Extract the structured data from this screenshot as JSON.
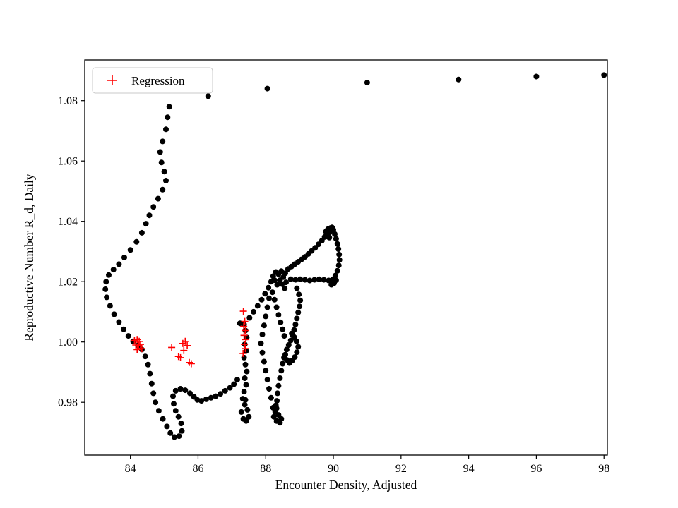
{
  "chart_data": {
    "type": "scatter",
    "title": "",
    "xlabel": "Encounter Density, Adjusted",
    "ylabel": "Reproductive Number R_d, Daily",
    "xlim": [
      82.65,
      98.1
    ],
    "ylim": [
      0.9625,
      1.0935
    ],
    "grid": false,
    "xticks": [
      84,
      86,
      88,
      90,
      92,
      94,
      96,
      98
    ],
    "xtick_labels": [
      "84",
      "86",
      "88",
      "90",
      "92",
      "94",
      "96",
      "98"
    ],
    "yticks": [
      0.98,
      1.0,
      1.02,
      1.04,
      1.06,
      1.08
    ],
    "ytick_labels": [
      "0.98",
      "1.00",
      "1.02",
      "1.04",
      "1.06",
      "1.08"
    ],
    "legend": {
      "position": "upper-left",
      "label": "Regression",
      "marker": "plus",
      "marker_color": "#ff0000"
    },
    "series": [
      {
        "name": "daily-trajectory",
        "marker": "circle",
        "color": "#000000",
        "points": [
          [
            85.15,
            1.078
          ],
          [
            86.3,
            1.0815
          ],
          [
            88.05,
            1.084
          ],
          [
            91.0,
            1.086
          ],
          [
            93.7,
            1.087
          ],
          [
            96.0,
            1.088
          ],
          [
            98.0,
            1.0885
          ],
          [
            85.1,
            1.0745
          ],
          [
            85.05,
            1.0705
          ],
          [
            84.95,
            1.0665
          ],
          [
            84.88,
            1.063
          ],
          [
            84.92,
            1.0595
          ],
          [
            85.0,
            1.0565
          ],
          [
            85.05,
            1.0535
          ],
          [
            84.95,
            1.0505
          ],
          [
            84.82,
            1.0475
          ],
          [
            84.68,
            1.0448
          ],
          [
            84.56,
            1.042
          ],
          [
            84.46,
            1.0392
          ],
          [
            84.34,
            1.0362
          ],
          [
            84.18,
            1.0332
          ],
          [
            84.0,
            1.0305
          ],
          [
            83.82,
            1.028
          ],
          [
            83.66,
            1.0258
          ],
          [
            83.5,
            1.024
          ],
          [
            83.36,
            1.0222
          ],
          [
            83.28,
            1.02
          ],
          [
            83.26,
            1.0175
          ],
          [
            83.3,
            1.0148
          ],
          [
            83.4,
            1.012
          ],
          [
            83.52,
            1.0092
          ],
          [
            83.66,
            1.0066
          ],
          [
            83.8,
            1.0042
          ],
          [
            83.94,
            1.002
          ],
          [
            84.08,
            1.0002
          ],
          [
            84.22,
            0.9988
          ],
          [
            84.34,
            0.9975
          ],
          [
            84.44,
            0.9952
          ],
          [
            84.52,
            0.9925
          ],
          [
            84.58,
            0.9895
          ],
          [
            84.63,
            0.9862
          ],
          [
            84.68,
            0.983
          ],
          [
            84.74,
            0.98
          ],
          [
            84.84,
            0.9772
          ],
          [
            84.96,
            0.9745
          ],
          [
            85.08,
            0.972
          ],
          [
            85.18,
            0.9698
          ],
          [
            85.3,
            0.9685
          ],
          [
            85.44,
            0.9688
          ],
          [
            85.52,
            0.9705
          ],
          [
            85.5,
            0.973
          ],
          [
            85.42,
            0.9752
          ],
          [
            85.34,
            0.9772
          ],
          [
            85.28,
            0.9795
          ],
          [
            85.26,
            0.982
          ],
          [
            85.34,
            0.9838
          ],
          [
            85.48,
            0.9845
          ],
          [
            85.62,
            0.984
          ],
          [
            85.76,
            0.983
          ],
          [
            85.88,
            0.9818
          ],
          [
            85.98,
            0.9808
          ],
          [
            86.1,
            0.9805
          ],
          [
            86.24,
            0.981
          ],
          [
            86.38,
            0.9815
          ],
          [
            86.52,
            0.982
          ],
          [
            86.66,
            0.9828
          ],
          [
            86.8,
            0.9838
          ],
          [
            86.94,
            0.9848
          ],
          [
            87.06,
            0.986
          ],
          [
            87.16,
            0.9875
          ],
          [
            87.28,
            0.9768
          ],
          [
            87.34,
            0.9745
          ],
          [
            87.42,
            0.9738
          ],
          [
            87.5,
            0.9752
          ],
          [
            87.46,
            0.9775
          ],
          [
            87.38,
            0.9792
          ],
          [
            87.32,
            0.9812
          ],
          [
            87.4,
            0.9808
          ],
          [
            87.36,
            0.9835
          ],
          [
            87.42,
            0.9858
          ],
          [
            87.38,
            0.988
          ],
          [
            87.44,
            0.9902
          ],
          [
            87.4,
            0.9925
          ],
          [
            87.36,
            0.9948
          ],
          [
            87.42,
            0.997
          ],
          [
            87.38,
            0.9992
          ],
          [
            87.44,
            1.0015
          ],
          [
            87.4,
            1.0038
          ],
          [
            87.36,
            1.0058
          ],
          [
            87.24,
            1.0062
          ],
          [
            87.52,
            1.008
          ],
          [
            87.64,
            1.01
          ],
          [
            87.76,
            1.012
          ],
          [
            87.88,
            1.014
          ],
          [
            87.98,
            1.016
          ],
          [
            88.08,
            1.018
          ],
          [
            88.16,
            1.02
          ],
          [
            88.22,
            1.0218
          ],
          [
            88.3,
            1.0232
          ],
          [
            88.26,
            1.0205
          ],
          [
            88.34,
            1.019
          ],
          [
            88.42,
            1.0205
          ],
          [
            88.38,
            1.0225
          ],
          [
            88.46,
            1.0235
          ],
          [
            88.52,
            1.0215
          ],
          [
            88.48,
            1.0192
          ],
          [
            88.56,
            1.0178
          ],
          [
            88.6,
            1.0198
          ],
          [
            88.58,
            1.0228
          ],
          [
            88.66,
            1.0242
          ],
          [
            88.76,
            1.025
          ],
          [
            88.86,
            1.0258
          ],
          [
            88.96,
            1.0266
          ],
          [
            89.06,
            1.0274
          ],
          [
            89.16,
            1.0282
          ],
          [
            89.26,
            1.0292
          ],
          [
            89.36,
            1.0302
          ],
          [
            89.46,
            1.0312
          ],
          [
            89.56,
            1.0324
          ],
          [
            89.66,
            1.0336
          ],
          [
            89.74,
            1.0348
          ],
          [
            89.82,
            1.036
          ],
          [
            89.88,
            1.037
          ],
          [
            89.92,
            1.0378
          ],
          [
            89.96,
            1.038
          ],
          [
            89.84,
            1.0374
          ],
          [
            89.78,
            1.0366
          ],
          [
            89.9,
            1.0366
          ],
          [
            89.86,
            1.0356
          ],
          [
            89.8,
            1.035
          ],
          [
            89.88,
            1.0346
          ],
          [
            90.0,
            1.0372
          ],
          [
            90.04,
            1.0358
          ],
          [
            90.08,
            1.0342
          ],
          [
            90.12,
            1.0325
          ],
          [
            90.15,
            1.0308
          ],
          [
            90.17,
            1.029
          ],
          [
            90.18,
            1.0272
          ],
          [
            90.16,
            1.0254
          ],
          [
            90.12,
            1.0236
          ],
          [
            90.06,
            1.022
          ],
          [
            89.98,
            1.0208
          ],
          [
            90.02,
            1.0195
          ],
          [
            89.94,
            1.019
          ],
          [
            90.08,
            1.0205
          ],
          [
            89.86,
            1.0204
          ],
          [
            89.72,
            1.0206
          ],
          [
            89.58,
            1.0208
          ],
          [
            89.44,
            1.0206
          ],
          [
            89.3,
            1.0204
          ],
          [
            89.16,
            1.0206
          ],
          [
            89.02,
            1.0208
          ],
          [
            88.88,
            1.0206
          ],
          [
            88.74,
            1.0208
          ],
          [
            88.92,
            1.0178
          ],
          [
            88.98,
            1.0158
          ],
          [
            89.02,
            1.0138
          ],
          [
            89.0,
            1.0118
          ],
          [
            88.96,
            1.0098
          ],
          [
            88.92,
            1.0078
          ],
          [
            88.88,
            1.0058
          ],
          [
            88.84,
            1.004
          ],
          [
            88.8,
            1.0022
          ],
          [
            88.74,
            1.0005
          ],
          [
            88.68,
            0.999
          ],
          [
            88.62,
            0.9975
          ],
          [
            88.58,
            0.9958
          ],
          [
            88.63,
            0.994
          ],
          [
            88.7,
            0.993
          ],
          [
            88.78,
            0.9938
          ],
          [
            88.86,
            0.995
          ],
          [
            88.92,
            0.9966
          ],
          [
            88.96,
            0.9984
          ],
          [
            88.91,
            1.0002
          ],
          [
            88.85,
            1.0015
          ],
          [
            88.77,
            1.0028
          ],
          [
            88.54,
            0.9948
          ],
          [
            88.5,
            0.9928
          ],
          [
            88.46,
            0.9905
          ],
          [
            88.42,
            0.988
          ],
          [
            88.38,
            0.9855
          ],
          [
            88.35,
            0.983
          ],
          [
            88.33,
            0.9805
          ],
          [
            88.32,
            0.978
          ],
          [
            88.38,
            0.9758
          ],
          [
            88.46,
            0.9745
          ],
          [
            88.42,
            0.9732
          ],
          [
            88.32,
            0.9738
          ],
          [
            88.24,
            0.9752
          ],
          [
            88.28,
            0.9768
          ],
          [
            88.22,
            0.9782
          ],
          [
            88.3,
            0.979
          ],
          [
            88.16,
            0.9815
          ],
          [
            88.1,
            0.9845
          ],
          [
            88.05,
            0.9875
          ],
          [
            88.0,
            0.9905
          ],
          [
            87.95,
            0.9935
          ],
          [
            87.9,
            0.9965
          ],
          [
            87.86,
            0.9995
          ],
          [
            87.9,
            1.0025
          ],
          [
            87.95,
            1.0055
          ],
          [
            88.0,
            1.0085
          ],
          [
            88.05,
            1.0115
          ],
          [
            88.1,
            1.0145
          ],
          [
            88.2,
            1.0165
          ],
          [
            88.26,
            1.014
          ],
          [
            88.32,
            1.0115
          ],
          [
            88.38,
            1.009
          ],
          [
            88.44,
            1.0065
          ],
          [
            88.5,
            1.0042
          ],
          [
            88.55,
            1.002
          ]
        ]
      },
      {
        "name": "Regression",
        "marker": "plus",
        "color": "#ff0000",
        "points": [
          [
            84.12,
            1.0005
          ],
          [
            84.2,
            1.0008
          ],
          [
            84.26,
            1.0002
          ],
          [
            84.16,
            0.999
          ],
          [
            84.24,
            0.9988
          ],
          [
            84.3,
            0.9992
          ],
          [
            84.34,
            0.9978
          ],
          [
            84.2,
            0.9975
          ],
          [
            85.22,
            0.9982
          ],
          [
            85.42,
            0.9952
          ],
          [
            85.48,
            0.9948
          ],
          [
            85.55,
            0.9995
          ],
          [
            85.62,
            1.0002
          ],
          [
            85.68,
            0.9988
          ],
          [
            85.58,
            0.9972
          ],
          [
            85.74,
            0.9932
          ],
          [
            85.8,
            0.9928
          ],
          [
            87.34,
            1.0102
          ],
          [
            87.38,
            1.0068
          ],
          [
            87.35,
            1.0052
          ],
          [
            87.4,
            1.0038
          ],
          [
            87.36,
            1.0022
          ],
          [
            87.41,
            1.0008
          ],
          [
            87.37,
            0.9992
          ],
          [
            87.33,
            0.9962
          ],
          [
            87.4,
            0.9978
          ]
        ]
      }
    ]
  }
}
